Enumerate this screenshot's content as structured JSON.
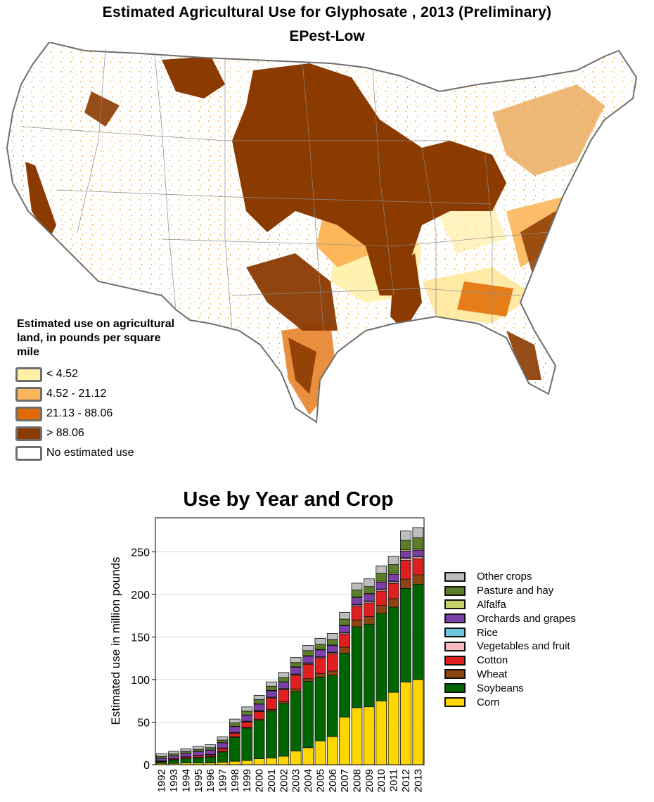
{
  "map": {
    "title": "Estimated Agricultural Use for Glyphosate , 2013 (Preliminary)",
    "subtitle": "EPest-Low",
    "legend_title": "Estimated use on agricultural land, in pounds per square mile",
    "legend_items": [
      {
        "label": "< 4.52",
        "color": "#FFF0A6"
      },
      {
        "label": "4.52 - 21.12",
        "color": "#FDB75A"
      },
      {
        "label": "21.13 - 88.06",
        "color": "#E06A00"
      },
      {
        "label": "> 88.06",
        "color": "#8B3A00"
      },
      {
        "label": "No estimated use",
        "color": "#FFFFFF"
      }
    ]
  },
  "chart_data": {
    "type": "bar",
    "stacked": true,
    "title": "Use by Year and Crop",
    "ylabel": "Estimated use in million pounds",
    "xlabel": "",
    "ylim": [
      0,
      290
    ],
    "yticks": [
      0,
      50,
      100,
      150,
      200,
      250
    ],
    "grid": true,
    "legend_position": "right",
    "categories": [
      "1992",
      "1993",
      "1994",
      "1995",
      "1996",
      "1997",
      "1998",
      "1999",
      "2000",
      "2001",
      "2002",
      "2003",
      "2004",
      "2005",
      "2006",
      "2007",
      "2008",
      "2009",
      "2010",
      "2011",
      "2012",
      "2013"
    ],
    "series": [
      {
        "name": "Corn",
        "color": "#FFD700",
        "values": [
          1.5,
          1.5,
          2,
          2,
          2,
          3,
          4,
          5,
          7,
          8,
          10,
          16,
          20,
          28,
          33,
          56,
          67,
          68,
          75,
          85,
          97,
          100
        ]
      },
      {
        "name": "Soybeans",
        "color": "#006400",
        "values": [
          2,
          4,
          5,
          6,
          7,
          12,
          28,
          38,
          45,
          55,
          62,
          70,
          78,
          75,
          72,
          75,
          95,
          97,
          103,
          100,
          110,
          112
        ]
      },
      {
        "name": "Wheat",
        "color": "#8B4513",
        "values": [
          0.3,
          0.3,
          0.5,
          0.5,
          0.5,
          1,
          1,
          1,
          1.5,
          2,
          2,
          3,
          3,
          4,
          5,
          7,
          8,
          9,
          9,
          10,
          11,
          11
        ]
      },
      {
        "name": "Cotton",
        "color": "#E02020",
        "values": [
          0.5,
          1,
          1.5,
          2,
          2,
          3,
          4,
          6,
          9,
          13,
          14,
          16,
          17,
          18,
          20,
          15,
          16,
          16,
          17,
          18,
          22,
          19
        ]
      },
      {
        "name": "Vegetables and fruit",
        "color": "#F8B8C0",
        "values": [
          0.2,
          0.2,
          0.3,
          0.3,
          0.4,
          0.5,
          0.5,
          0.8,
          0.8,
          1,
          1,
          1,
          1,
          1.2,
          1.3,
          1.5,
          1.5,
          1.5,
          1.6,
          1.8,
          2,
          2
        ]
      },
      {
        "name": "Rice",
        "color": "#6EC6E0",
        "values": [
          0.1,
          0.1,
          0.1,
          0.1,
          0.2,
          0.2,
          0.3,
          0.3,
          0.4,
          0.4,
          0.5,
          0.5,
          0.5,
          0.6,
          0.6,
          0.7,
          0.7,
          0.8,
          0.8,
          0.9,
          1,
          1
        ]
      },
      {
        "name": "Orchards and grapes",
        "color": "#7B3FA8",
        "values": [
          3,
          3.5,
          4,
          4.5,
          5,
          6,
          7,
          7,
          7.5,
          7.5,
          7.5,
          8,
          8,
          8,
          8,
          8,
          8,
          8,
          8,
          8,
          8,
          7
        ]
      },
      {
        "name": "Alfalfa",
        "color": "#C7D36A",
        "values": [
          0.1,
          0.1,
          0.1,
          0.1,
          0.2,
          0.2,
          0.3,
          0.3,
          0.3,
          0.4,
          0.4,
          0.5,
          0.5,
          0.6,
          0.7,
          0.8,
          1,
          1,
          1.2,
          1.3,
          1.5,
          1.5
        ]
      },
      {
        "name": "Pasture and hay",
        "color": "#5A7D2A",
        "values": [
          2,
          2,
          2.2,
          2.5,
          2.7,
          3,
          4,
          4.5,
          5,
          5,
          5,
          5,
          6,
          6,
          6.5,
          7,
          8,
          8,
          9,
          10,
          11,
          13
        ]
      },
      {
        "name": "Other crops",
        "color": "#BDBDBD",
        "values": [
          3,
          3,
          3,
          3.5,
          3.5,
          4,
          4.5,
          5,
          5,
          5,
          6,
          6,
          6,
          7,
          7,
          8,
          8,
          9,
          9,
          10,
          11,
          12
        ]
      }
    ]
  }
}
